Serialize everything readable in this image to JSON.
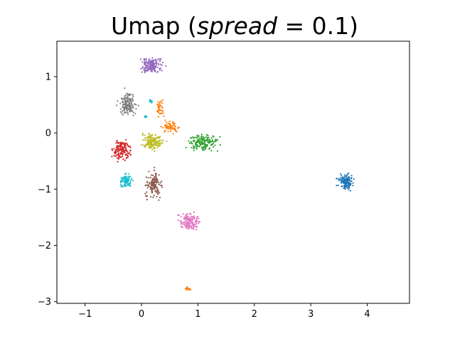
{
  "chart_data": {
    "type": "scatter",
    "title": {
      "prefix": "Umap (",
      "math_var": "spread",
      "math_rest": " = 0.1)"
    },
    "xlabel": "",
    "ylabel": "",
    "xlim": [
      -1.5,
      4.75
    ],
    "ylim": [
      -3.03,
      1.63
    ],
    "xticks": [
      -1,
      0,
      1,
      2,
      3,
      4
    ],
    "yticks": [
      1,
      0,
      -1,
      -2,
      -3
    ],
    "grid": false,
    "legend": "none",
    "clusters": [
      {
        "color": "#1f77b4",
        "center": [
          3.62,
          -0.87
        ],
        "spread": [
          0.09,
          0.09
        ],
        "count": 130
      },
      {
        "color": "#ff7f0e",
        "center": [
          0.34,
          0.43
        ],
        "spread": [
          0.05,
          0.09
        ],
        "count": 40
      },
      {
        "color": "#ff7f0e",
        "center": [
          0.52,
          0.1
        ],
        "spread": [
          0.1,
          0.07
        ],
        "count": 60
      },
      {
        "color": "#ff7f0e",
        "center": [
          0.82,
          -2.77
        ],
        "spread": [
          0.04,
          0.02
        ],
        "count": 15
      },
      {
        "color": "#2ca02c",
        "center": [
          1.08,
          -0.18
        ],
        "spread": [
          0.18,
          0.1
        ],
        "count": 150
      },
      {
        "color": "#d62728",
        "center": [
          -0.35,
          -0.3
        ],
        "spread": [
          0.1,
          0.13
        ],
        "count": 150
      },
      {
        "color": "#9467bd",
        "center": [
          0.18,
          1.2
        ],
        "spread": [
          0.14,
          0.1
        ],
        "count": 150
      },
      {
        "color": "#8c564b",
        "center": [
          0.22,
          -0.92
        ],
        "spread": [
          0.1,
          0.15
        ],
        "count": 130
      },
      {
        "color": "#e377c2",
        "center": [
          0.85,
          -1.58
        ],
        "spread": [
          0.12,
          0.1
        ],
        "count": 150
      },
      {
        "color": "#7f7f7f",
        "center": [
          -0.25,
          0.52
        ],
        "spread": [
          0.1,
          0.14
        ],
        "count": 150
      },
      {
        "color": "#bcbd22",
        "center": [
          0.2,
          -0.15
        ],
        "spread": [
          0.13,
          0.1
        ],
        "count": 150
      },
      {
        "color": "#17becf",
        "center": [
          -0.28,
          -0.85
        ],
        "spread": [
          0.07,
          0.08
        ],
        "count": 90
      },
      {
        "color": "#17becf",
        "center": [
          0.17,
          0.56
        ],
        "spread": [
          0.03,
          0.02
        ],
        "count": 12
      },
      {
        "color": "#17becf",
        "center": [
          0.07,
          0.29
        ],
        "spread": [
          0.02,
          0.02
        ],
        "count": 8
      }
    ]
  }
}
